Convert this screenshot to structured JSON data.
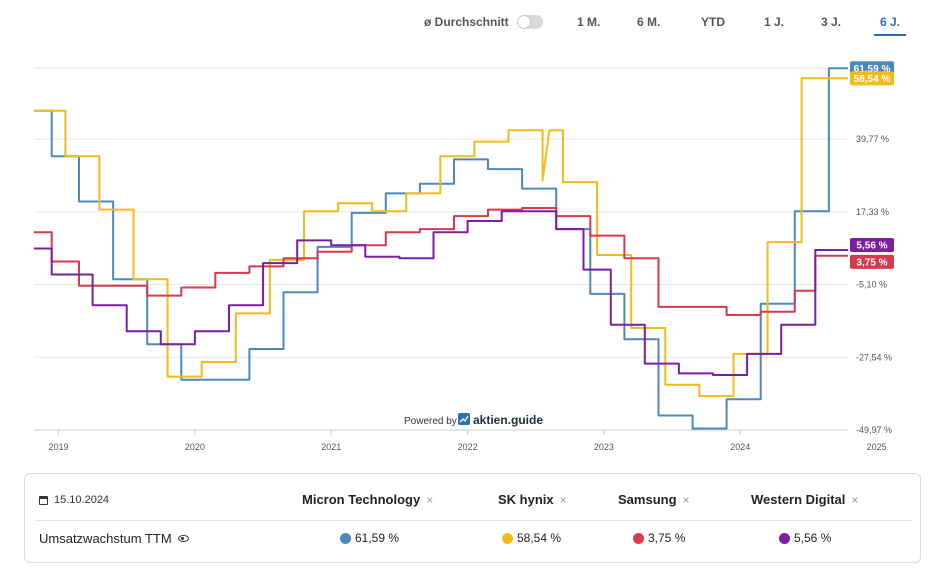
{
  "toolbar": {
    "average_label": "ø Durchschnitt",
    "ranges": [
      "1 M.",
      "6 M.",
      "YTD",
      "1 J.",
      "3 J.",
      "6 J."
    ],
    "active_range": "6 J."
  },
  "watermark": {
    "powered_by": "Powered by",
    "brand": "aktien.guide"
  },
  "legend": {
    "date": "15.10.2024",
    "metric": "Umsatzwachstum TTM",
    "companies": [
      {
        "name": "Micron Technology",
        "value": "61,59 %",
        "color": "#4c88bf"
      },
      {
        "name": "SK hynix",
        "value": "58,54 %",
        "color": "#f2bb1a"
      },
      {
        "name": "Samsung",
        "value": "3,75 %",
        "color": "#d9394e"
      },
      {
        "name": "Western Digital",
        "value": "5,56 %",
        "color": "#7a1fa2"
      }
    ]
  },
  "chart_data": {
    "type": "line",
    "step": true,
    "xlim": [
      2018.82,
      2024.79
    ],
    "ylim": [
      -49.97,
      62.0
    ],
    "x_ticks": [
      "2019",
      "2020",
      "2021",
      "2022",
      "2023",
      "2024",
      "2025"
    ],
    "y_ticks": [
      -49.97,
      -27.54,
      -5.1,
      17.33,
      39.77
    ],
    "y_tick_labels": [
      "-49,97 %",
      "-27,54 %",
      "-5,10 %",
      "17,33 %",
      "39,77 %"
    ],
    "grid": true,
    "series": [
      {
        "name": "Micron Technology",
        "color": "#4c88bf",
        "last_label": "61,59 %",
        "points": [
          [
            2018.82,
            48.5
          ],
          [
            2018.95,
            48.5
          ],
          [
            2018.95,
            34.5
          ],
          [
            2019.15,
            34.5
          ],
          [
            2019.15,
            20.5
          ],
          [
            2019.4,
            20.5
          ],
          [
            2019.4,
            -3.5
          ],
          [
            2019.65,
            -3.5
          ],
          [
            2019.65,
            -23.5
          ],
          [
            2019.9,
            -23.5
          ],
          [
            2019.9,
            -34.5
          ],
          [
            2020.4,
            -34.5
          ],
          [
            2020.4,
            -25.0
          ],
          [
            2020.65,
            -25.0
          ],
          [
            2020.65,
            -7.5
          ],
          [
            2020.9,
            -7.5
          ],
          [
            2020.9,
            6.5
          ],
          [
            2021.15,
            6.5
          ],
          [
            2021.15,
            17.0
          ],
          [
            2021.4,
            17.0
          ],
          [
            2021.4,
            23.0
          ],
          [
            2021.65,
            23.0
          ],
          [
            2021.65,
            26.0
          ],
          [
            2021.9,
            26.0
          ],
          [
            2021.9,
            33.5
          ],
          [
            2022.15,
            33.5
          ],
          [
            2022.15,
            30.5
          ],
          [
            2022.4,
            30.5
          ],
          [
            2022.4,
            24.5
          ],
          [
            2022.65,
            24.5
          ],
          [
            2022.65,
            12.0
          ],
          [
            2022.9,
            12.0
          ],
          [
            2022.9,
            -8.0
          ],
          [
            2023.15,
            -8.0
          ],
          [
            2023.15,
            -22.0
          ],
          [
            2023.4,
            -22.0
          ],
          [
            2023.4,
            -45.5
          ],
          [
            2023.65,
            -45.5
          ],
          [
            2023.65,
            -49.5
          ],
          [
            2023.9,
            -49.5
          ],
          [
            2023.9,
            -40.5
          ],
          [
            2024.15,
            -40.5
          ],
          [
            2024.15,
            -11.0
          ],
          [
            2024.4,
            -11.0
          ],
          [
            2024.4,
            17.5
          ],
          [
            2024.65,
            17.5
          ],
          [
            2024.65,
            61.6
          ],
          [
            2024.79,
            61.6
          ]
        ]
      },
      {
        "name": "SK hynix",
        "color": "#f2bb1a",
        "last_label": "58,54 %",
        "points": [
          [
            2018.82,
            48.5
          ],
          [
            2019.05,
            48.5
          ],
          [
            2019.05,
            34.5
          ],
          [
            2019.3,
            34.5
          ],
          [
            2019.3,
            18.0
          ],
          [
            2019.55,
            18.0
          ],
          [
            2019.55,
            -3.5
          ],
          [
            2019.8,
            -3.5
          ],
          [
            2019.8,
            -33.5
          ],
          [
            2020.05,
            -33.5
          ],
          [
            2020.05,
            -29.0
          ],
          [
            2020.3,
            -29.0
          ],
          [
            2020.3,
            -14.0
          ],
          [
            2020.55,
            -14.0
          ],
          [
            2020.55,
            2.5
          ],
          [
            2020.8,
            2.5
          ],
          [
            2020.8,
            17.5
          ],
          [
            2021.05,
            17.5
          ],
          [
            2021.05,
            20.0
          ],
          [
            2021.3,
            20.0
          ],
          [
            2021.3,
            17.5
          ],
          [
            2021.55,
            17.5
          ],
          [
            2021.55,
            23.0
          ],
          [
            2021.8,
            23.0
          ],
          [
            2021.8,
            34.5
          ],
          [
            2022.05,
            34.5
          ],
          [
            2022.05,
            39.0
          ],
          [
            2022.3,
            39.0
          ],
          [
            2022.3,
            42.5
          ],
          [
            2022.55,
            42.5
          ],
          [
            2022.55,
            27.0
          ],
          [
            2022.6,
            42.5
          ],
          [
            2022.7,
            42.5
          ],
          [
            2022.7,
            26.5
          ],
          [
            2022.95,
            26.5
          ],
          [
            2022.95,
            4.0
          ],
          [
            2023.2,
            4.0
          ],
          [
            2023.2,
            -18.5
          ],
          [
            2023.45,
            -18.5
          ],
          [
            2023.45,
            -36.0
          ],
          [
            2023.7,
            -36.0
          ],
          [
            2023.7,
            -39.5
          ],
          [
            2023.95,
            -39.5
          ],
          [
            2023.95,
            -26.5
          ],
          [
            2024.2,
            -26.5
          ],
          [
            2024.2,
            8.0
          ],
          [
            2024.45,
            8.0
          ],
          [
            2024.45,
            58.5
          ],
          [
            2024.79,
            58.5
          ]
        ]
      },
      {
        "name": "Samsung",
        "color": "#d9394e",
        "last_label": "3,75 %",
        "points": [
          [
            2018.82,
            11.0
          ],
          [
            2018.95,
            11.0
          ],
          [
            2018.95,
            2.0
          ],
          [
            2019.15,
            2.0
          ],
          [
            2019.15,
            -5.5
          ],
          [
            2019.4,
            -5.5
          ],
          [
            2019.4,
            -5.5
          ],
          [
            2019.65,
            -5.5
          ],
          [
            2019.65,
            -8.5
          ],
          [
            2019.9,
            -8.5
          ],
          [
            2019.9,
            -6.0
          ],
          [
            2020.15,
            -6.0
          ],
          [
            2020.15,
            -1.5
          ],
          [
            2020.4,
            -1.5
          ],
          [
            2020.4,
            0.5
          ],
          [
            2020.65,
            0.5
          ],
          [
            2020.65,
            3.0
          ],
          [
            2020.9,
            3.0
          ],
          [
            2020.9,
            5.0
          ],
          [
            2021.15,
            5.0
          ],
          [
            2021.15,
            7.0
          ],
          [
            2021.4,
            7.0
          ],
          [
            2021.4,
            11.0
          ],
          [
            2021.65,
            11.0
          ],
          [
            2021.65,
            12.0
          ],
          [
            2021.9,
            12.0
          ],
          [
            2021.9,
            16.0
          ],
          [
            2022.15,
            16.0
          ],
          [
            2022.15,
            18.0
          ],
          [
            2022.4,
            18.0
          ],
          [
            2022.4,
            18.5
          ],
          [
            2022.65,
            18.5
          ],
          [
            2022.65,
            16.0
          ],
          [
            2022.9,
            16.0
          ],
          [
            2022.9,
            10.0
          ],
          [
            2023.15,
            10.0
          ],
          [
            2023.15,
            3.0
          ],
          [
            2023.4,
            3.0
          ],
          [
            2023.4,
            -12.0
          ],
          [
            2023.65,
            -12.0
          ],
          [
            2023.65,
            -12.0
          ],
          [
            2023.9,
            -12.0
          ],
          [
            2023.9,
            -14.5
          ],
          [
            2024.15,
            -14.5
          ],
          [
            2024.15,
            -13.5
          ],
          [
            2024.4,
            -13.5
          ],
          [
            2024.4,
            -7.0
          ],
          [
            2024.55,
            -7.0
          ],
          [
            2024.55,
            3.75
          ],
          [
            2024.79,
            3.75
          ]
        ]
      },
      {
        "name": "Western Digital",
        "color": "#7a1fa2",
        "last_label": "5,56 %",
        "points": [
          [
            2018.82,
            6.0
          ],
          [
            2018.95,
            6.0
          ],
          [
            2018.95,
            -2.0
          ],
          [
            2019.15,
            -2.0
          ],
          [
            2019.15,
            -2.0
          ],
          [
            2019.25,
            -2.0
          ],
          [
            2019.25,
            -11.5
          ],
          [
            2019.5,
            -11.5
          ],
          [
            2019.5,
            -19.5
          ],
          [
            2019.75,
            -19.5
          ],
          [
            2019.75,
            -23.5
          ],
          [
            2020.0,
            -23.5
          ],
          [
            2020.0,
            -19.5
          ],
          [
            2020.25,
            -19.5
          ],
          [
            2020.25,
            -11.5
          ],
          [
            2020.5,
            -11.5
          ],
          [
            2020.5,
            1.5
          ],
          [
            2020.75,
            1.5
          ],
          [
            2020.75,
            8.5
          ],
          [
            2021.0,
            8.5
          ],
          [
            2021.0,
            7.0
          ],
          [
            2021.25,
            7.0
          ],
          [
            2021.25,
            3.5
          ],
          [
            2021.5,
            3.5
          ],
          [
            2021.5,
            3.0
          ],
          [
            2021.75,
            3.0
          ],
          [
            2021.75,
            11.0
          ],
          [
            2022.0,
            11.0
          ],
          [
            2022.0,
            14.5
          ],
          [
            2022.25,
            14.5
          ],
          [
            2022.25,
            17.5
          ],
          [
            2022.5,
            17.5
          ],
          [
            2022.5,
            17.5
          ],
          [
            2022.65,
            17.5
          ],
          [
            2022.65,
            12.0
          ],
          [
            2022.85,
            12.0
          ],
          [
            2022.85,
            -0.5
          ],
          [
            2023.05,
            -0.5
          ],
          [
            2023.05,
            -17.5
          ],
          [
            2023.3,
            -17.5
          ],
          [
            2023.3,
            -29.5
          ],
          [
            2023.55,
            -29.5
          ],
          [
            2023.55,
            -32.5
          ],
          [
            2023.8,
            -32.5
          ],
          [
            2023.8,
            -33.0
          ],
          [
            2024.05,
            -33.0
          ],
          [
            2024.05,
            -26.5
          ],
          [
            2024.3,
            -26.5
          ],
          [
            2024.3,
            -17.5
          ],
          [
            2024.55,
            -17.5
          ],
          [
            2024.55,
            5.56
          ],
          [
            2024.79,
            5.56
          ]
        ]
      }
    ]
  }
}
